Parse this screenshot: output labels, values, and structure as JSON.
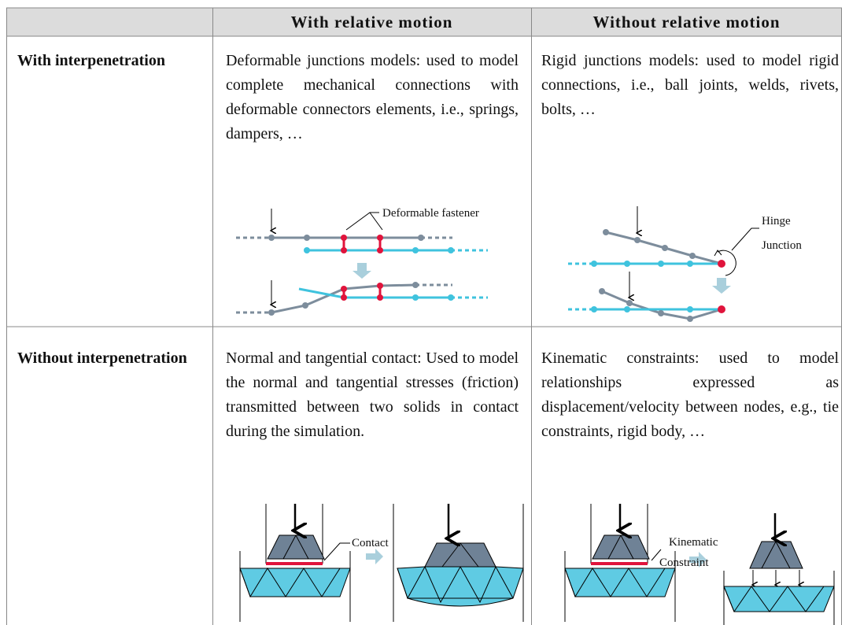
{
  "header": {
    "col2": "With relative motion",
    "col3": "Without relative motion"
  },
  "rows": [
    {
      "label": "With interpenetration",
      "relative": "Deformable junctions models: used to model complete mechanical connections with deformable connectors elements, i.e., springs, dampers, …",
      "non_relative": "Rigid junctions models: used to model rigid connections, i.e., ball joints, welds, rivets, bolts, …"
    },
    {
      "label": "Without interpenetration",
      "relative": "Normal and tangential contact: Used to model the normal and tangential stresses (friction) transmitted between two solids in contact during the simulation.",
      "non_relative": "Kinematic constraints: used to model relationships expressed as displacement/velocity between nodes, e.g., tie constraints, rigid body, …"
    }
  ],
  "diagrams": {
    "fastener": "Deformable fastener",
    "hinge": [
      "Hinge",
      "Junction"
    ],
    "contact": "Contact",
    "kinematic": [
      "Kinematic",
      "Constraint"
    ]
  }
}
